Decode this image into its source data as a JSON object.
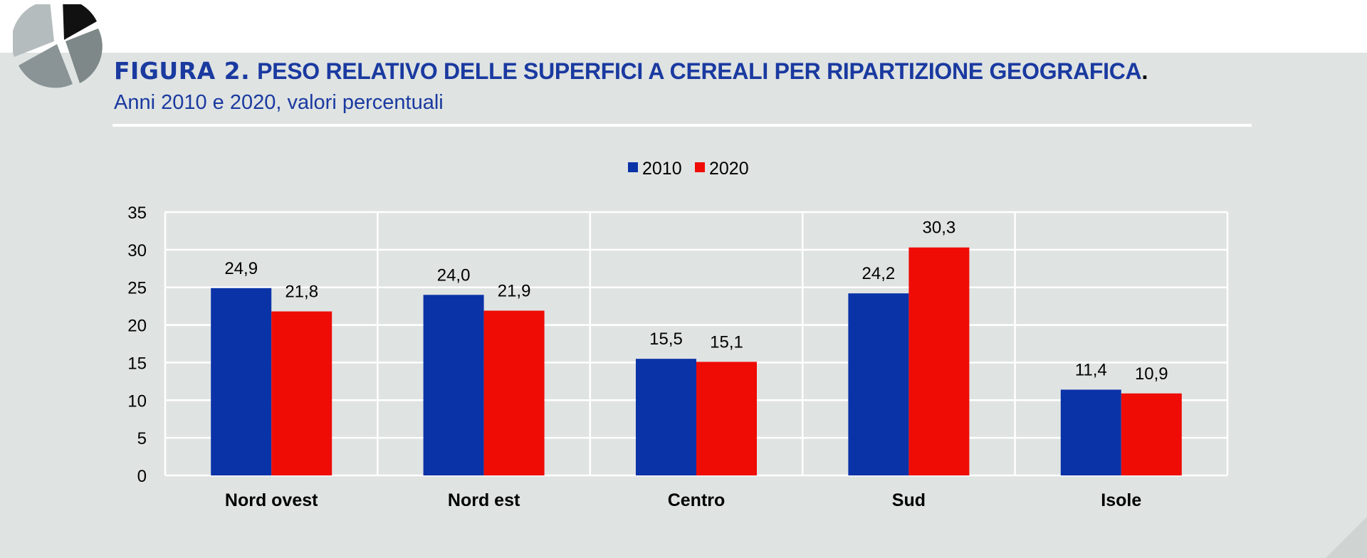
{
  "header": {
    "figure_label": "FIGURA 2.",
    "title": "PESO RELATIVO DELLE SUPERFICI A CEREALI PER RIPARTIZIONE GEOGRAFICA",
    "title_end": ".",
    "subtitle": "Anni 2010 e 2020, valori percentuali"
  },
  "logo": {
    "icon": "pie-chart-logo-icon"
  },
  "chart_data": {
    "type": "bar",
    "title": "PESO RELATIVO DELLE SUPERFICI A CEREALI PER RIPARTIZIONE GEOGRAFICA",
    "subtitle": "Anni 2010 e 2020, valori percentuali",
    "xlabel": "",
    "ylabel": "",
    "categories": [
      "Nord ovest",
      "Nord est",
      "Centro",
      "Sud",
      "Isole"
    ],
    "series": [
      {
        "name": "2010",
        "color": "#0a33a8",
        "values": [
          24.9,
          24.0,
          15.5,
          24.2,
          11.4
        ],
        "labels": [
          "24,9",
          "24,0",
          "15,5",
          "24,2",
          "11,4"
        ]
      },
      {
        "name": "2020",
        "color": "#ee0c05",
        "values": [
          21.8,
          21.9,
          15.1,
          30.3,
          10.9
        ],
        "labels": [
          "21,8",
          "21,9",
          "15,1",
          "30,3",
          "10,9"
        ]
      }
    ],
    "ylim": [
      0,
      35
    ],
    "yticks": [
      0,
      5,
      10,
      15,
      20,
      25,
      30,
      35
    ],
    "grid": true,
    "legend_position": "top-center"
  },
  "colors": {
    "title": "#1a3aa0",
    "panel_background": "#dfe3e2",
    "gridline": "#ffffff"
  }
}
